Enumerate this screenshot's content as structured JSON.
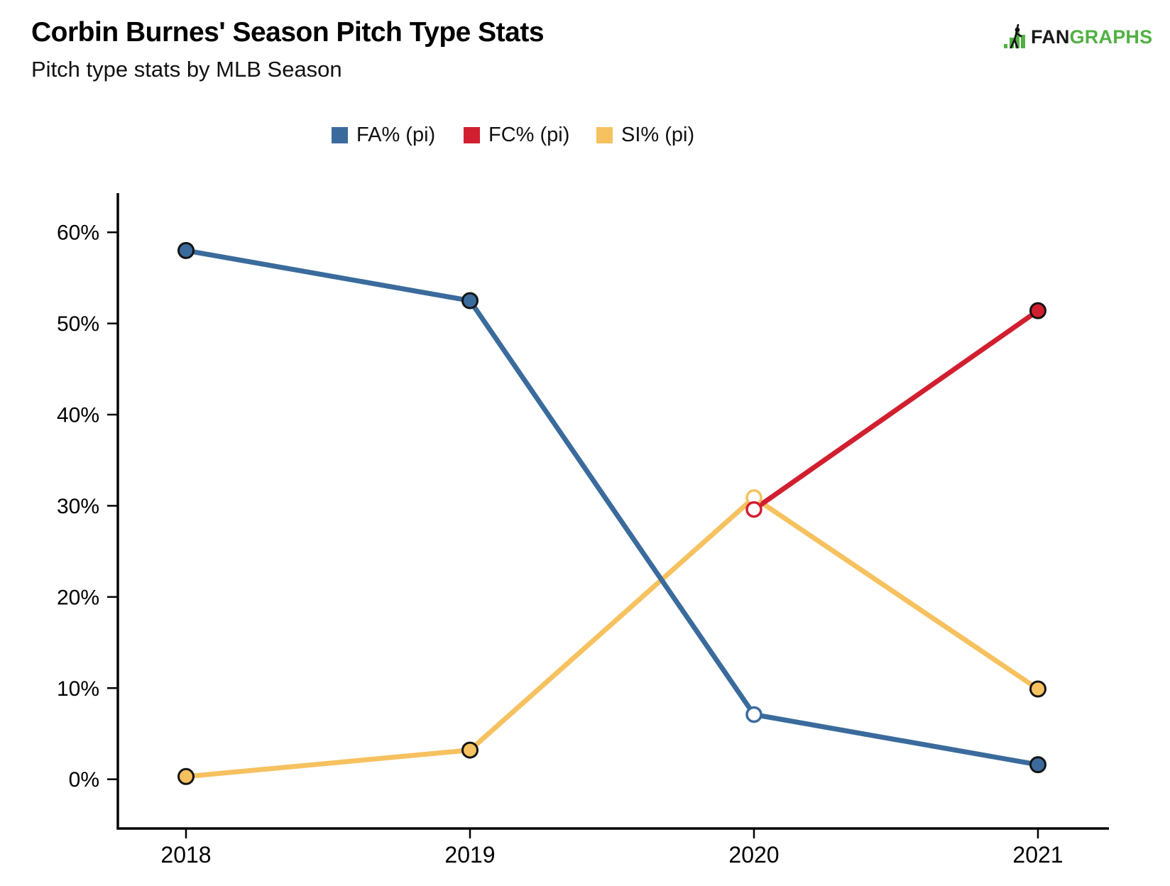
{
  "header": {
    "title": "Corbin Burnes' Season Pitch Type Stats",
    "subtitle": "Pitch type stats by MLB Season"
  },
  "logo": {
    "fan": "FAN",
    "graphs": "GRAPHS",
    "green": "#52b043",
    "black": "#1a1a1a"
  },
  "legend": {
    "items": [
      {
        "label": "FA% (pi)",
        "color": "#3a6b9c"
      },
      {
        "label": "FC% (pi)",
        "color": "#d11f2f"
      },
      {
        "label": "SI% (pi)",
        "color": "#f6c15f"
      }
    ]
  },
  "chart_data": {
    "type": "line",
    "title": "Corbin Burnes' Season Pitch Type Stats",
    "subtitle": "Pitch type stats by MLB Season",
    "xlabel": "",
    "ylabel": "",
    "x_ticks": [
      2018,
      2019,
      2020,
      2021
    ],
    "y_ticks": [
      0,
      10,
      20,
      30,
      40,
      50,
      60
    ],
    "y_tick_suffix": "%",
    "xlim": [
      2017.76,
      2021.25
    ],
    "ylim": [
      -5.4,
      64.3
    ],
    "grid": false,
    "legend_position": "top",
    "axis_color": "#000000",
    "marker_outline_color": "#141414",
    "open_marker_note": "2020 points drawn as open (white-filled) circles",
    "draw_order": [
      2,
      0,
      1
    ],
    "series": [
      {
        "name": "FA% (pi)",
        "color": "#3a6b9c",
        "points": [
          {
            "x": 2018,
            "y": 58.0,
            "open": false
          },
          {
            "x": 2019,
            "y": 52.5,
            "open": false
          },
          {
            "x": 2020,
            "y": 7.1,
            "open": true
          },
          {
            "x": 2021,
            "y": 1.6,
            "open": false
          }
        ]
      },
      {
        "name": "FC% (pi)",
        "color": "#d11f2f",
        "points": [
          {
            "x": 2020,
            "y": 29.6,
            "open": true
          },
          {
            "x": 2021,
            "y": 51.4,
            "open": false
          }
        ]
      },
      {
        "name": "SI% (pi)",
        "color": "#f6c15f",
        "points": [
          {
            "x": 2018,
            "y": 0.3,
            "open": false
          },
          {
            "x": 2019,
            "y": 3.2,
            "open": false
          },
          {
            "x": 2020,
            "y": 30.9,
            "open": true
          },
          {
            "x": 2021,
            "y": 9.9,
            "open": false
          }
        ]
      }
    ]
  }
}
